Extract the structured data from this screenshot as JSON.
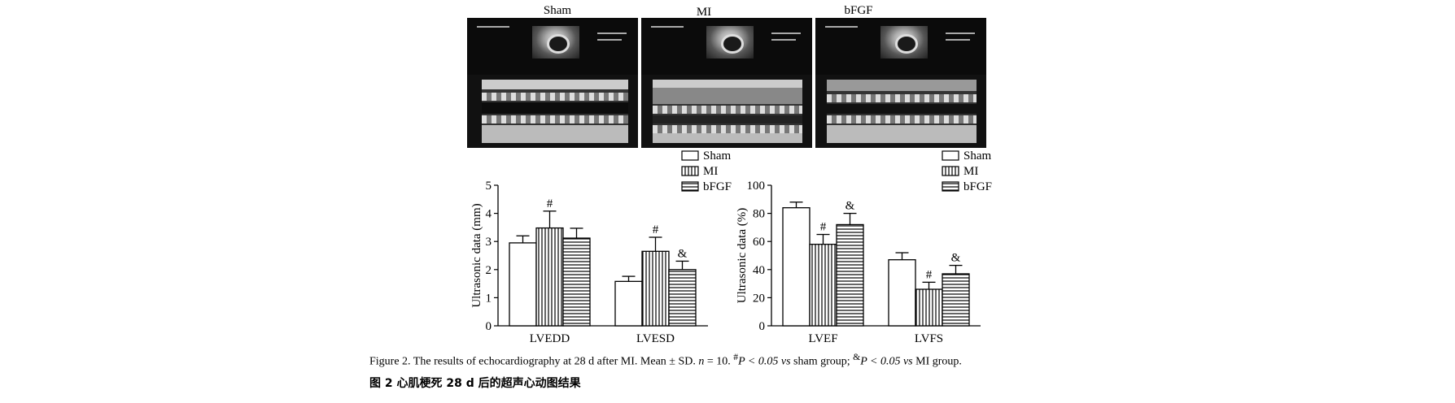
{
  "panels": {
    "labels": [
      "Sham",
      "MI",
      "bFGF"
    ]
  },
  "legend": {
    "items": [
      "Sham",
      "MI",
      "bFGF"
    ]
  },
  "chart_data": [
    {
      "type": "bar",
      "ylabel": "Ultrasonic data (mm)",
      "ylim": [
        0,
        5
      ],
      "yticks": [
        "0",
        "1",
        "2",
        "3",
        "4",
        "5"
      ],
      "categories": [
        "LVEDD",
        "LVESD"
      ],
      "series": [
        {
          "name": "Sham",
          "values": [
            2.95,
            1.58
          ],
          "errors": [
            0.25,
            0.18
          ]
        },
        {
          "name": "MI",
          "values": [
            3.48,
            2.65
          ],
          "errors": [
            0.6,
            0.5
          ]
        },
        {
          "name": "bFGF",
          "values": [
            3.12,
            2.0
          ],
          "errors": [
            0.35,
            0.3
          ]
        }
      ],
      "annotations": [
        {
          "category": "LVEDD",
          "series": "MI",
          "text": "#"
        },
        {
          "category": "LVESD",
          "series": "MI",
          "text": "#"
        },
        {
          "category": "LVESD",
          "series": "bFGF",
          "text": "&"
        }
      ],
      "legend_position": "top-right"
    },
    {
      "type": "bar",
      "ylabel": "Ultrasonic data (%)",
      "ylim": [
        0,
        100
      ],
      "yticks": [
        "0",
        "20",
        "40",
        "60",
        "80",
        "100"
      ],
      "categories": [
        "LVEF",
        "LVFS"
      ],
      "series": [
        {
          "name": "Sham",
          "values": [
            84,
            47
          ],
          "errors": [
            4,
            5
          ]
        },
        {
          "name": "MI",
          "values": [
            58,
            26
          ],
          "errors": [
            7,
            5
          ]
        },
        {
          "name": "bFGF",
          "values": [
            72,
            37
          ],
          "errors": [
            8,
            6
          ]
        }
      ],
      "annotations": [
        {
          "category": "LVEF",
          "series": "MI",
          "text": "#"
        },
        {
          "category": "LVEF",
          "series": "bFGF",
          "text": "&"
        },
        {
          "category": "LVFS",
          "series": "MI",
          "text": "#"
        },
        {
          "category": "LVFS",
          "series": "bFGF",
          "text": "&"
        }
      ],
      "legend_position": "top-right"
    }
  ],
  "caption": {
    "en_prefix": "Figure 2.   The results of echocardiography at  28 d after MI.  Mean ± SD.  ",
    "n_text": "n",
    "n_value": " = 10.  ",
    "sig1_mark": "#",
    "sig1_text": "P < 0.05 ",
    "vs1": "vs",
    "sig1_group": " sham group;  ",
    "sig2_mark": "&",
    "sig2_text": "P < 0.05 ",
    "vs2": "vs",
    "sig2_group": " MI group.",
    "cn": "图 2    心肌梗死 28 d 后的超声心动图结果"
  }
}
